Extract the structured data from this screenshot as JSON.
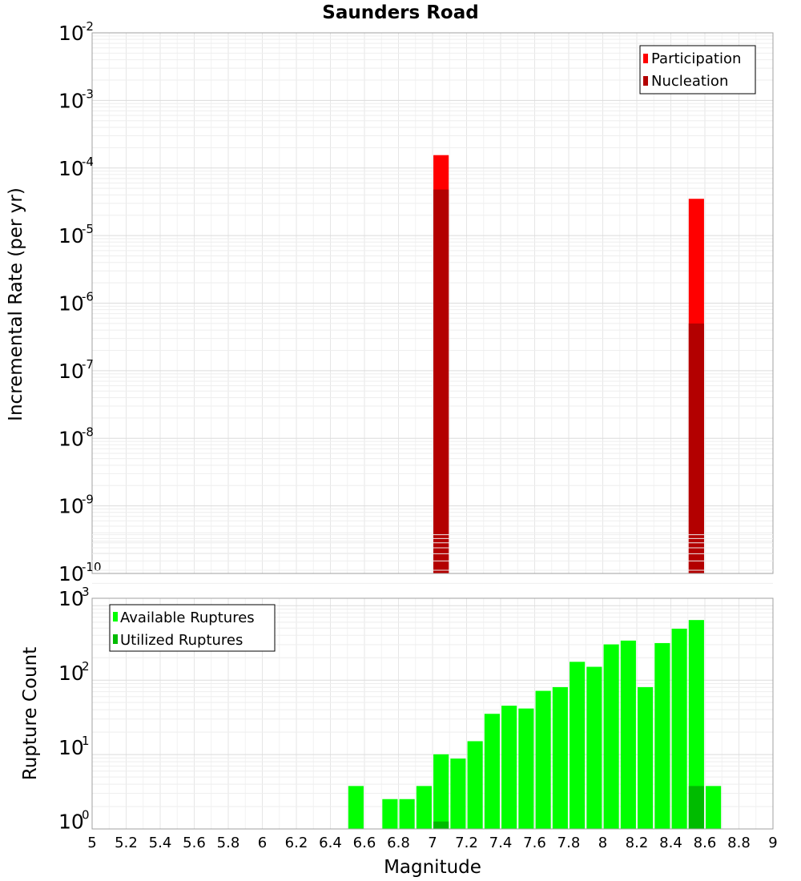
{
  "chart_data": [
    {
      "type": "bar",
      "title": "Saunders Road",
      "xlabel": "",
      "ylabel": "Incremental Rate (per yr)",
      "scale_y": "log",
      "xlim": [
        5,
        9
      ],
      "ylim_exponents": [
        -10,
        -2
      ],
      "grid": true,
      "legend_position": "top-right",
      "bar_width": 0.09,
      "x": [
        7.05,
        8.55
      ],
      "series": [
        {
          "name": "Participation",
          "color": "#ff0000",
          "values": [
            0.000155,
            3.5e-05
          ]
        },
        {
          "name": "Nucleation",
          "color": "#b30000",
          "values": [
            4.8e-05,
            5e-07
          ]
        }
      ]
    },
    {
      "type": "bar",
      "title": "",
      "xlabel": "Magnitude",
      "ylabel": "Rupture Count",
      "scale_y": "log",
      "xlim": [
        5,
        9
      ],
      "ylim_exponents": [
        0,
        3
      ],
      "grid": true,
      "legend_position": "top-left",
      "bar_width": 0.09,
      "x_ticks": [
        "5",
        "5.2",
        "5.4",
        "5.6",
        "5.8",
        "6",
        "6.2",
        "6.4",
        "6.6",
        "6.8",
        "7",
        "7.2",
        "7.4",
        "7.6",
        "7.8",
        "8",
        "8.2",
        "8.4",
        "8.6",
        "8.8",
        "9"
      ],
      "x": [
        6.55,
        6.75,
        6.85,
        6.95,
        7.05,
        7.15,
        7.25,
        7.35,
        7.45,
        7.55,
        7.65,
        7.75,
        7.85,
        7.95,
        8.05,
        8.15,
        8.25,
        8.35,
        8.45,
        8.55,
        8.65
      ],
      "series": [
        {
          "name": "Available Ruptures",
          "color": "#00ff00",
          "values": [
            3,
            2,
            2,
            3,
            8,
            7,
            12,
            28,
            36,
            33,
            57,
            64,
            140,
            120,
            240,
            270,
            64,
            250,
            390,
            510,
            3
          ]
        },
        {
          "name": "Utilized Ruptures",
          "color": "#00bb00",
          "values": [
            0,
            0,
            0,
            0,
            1,
            0,
            0,
            0,
            0,
            0,
            0,
            0,
            0,
            0,
            0,
            0,
            0,
            0,
            0,
            3,
            0
          ]
        }
      ]
    }
  ]
}
